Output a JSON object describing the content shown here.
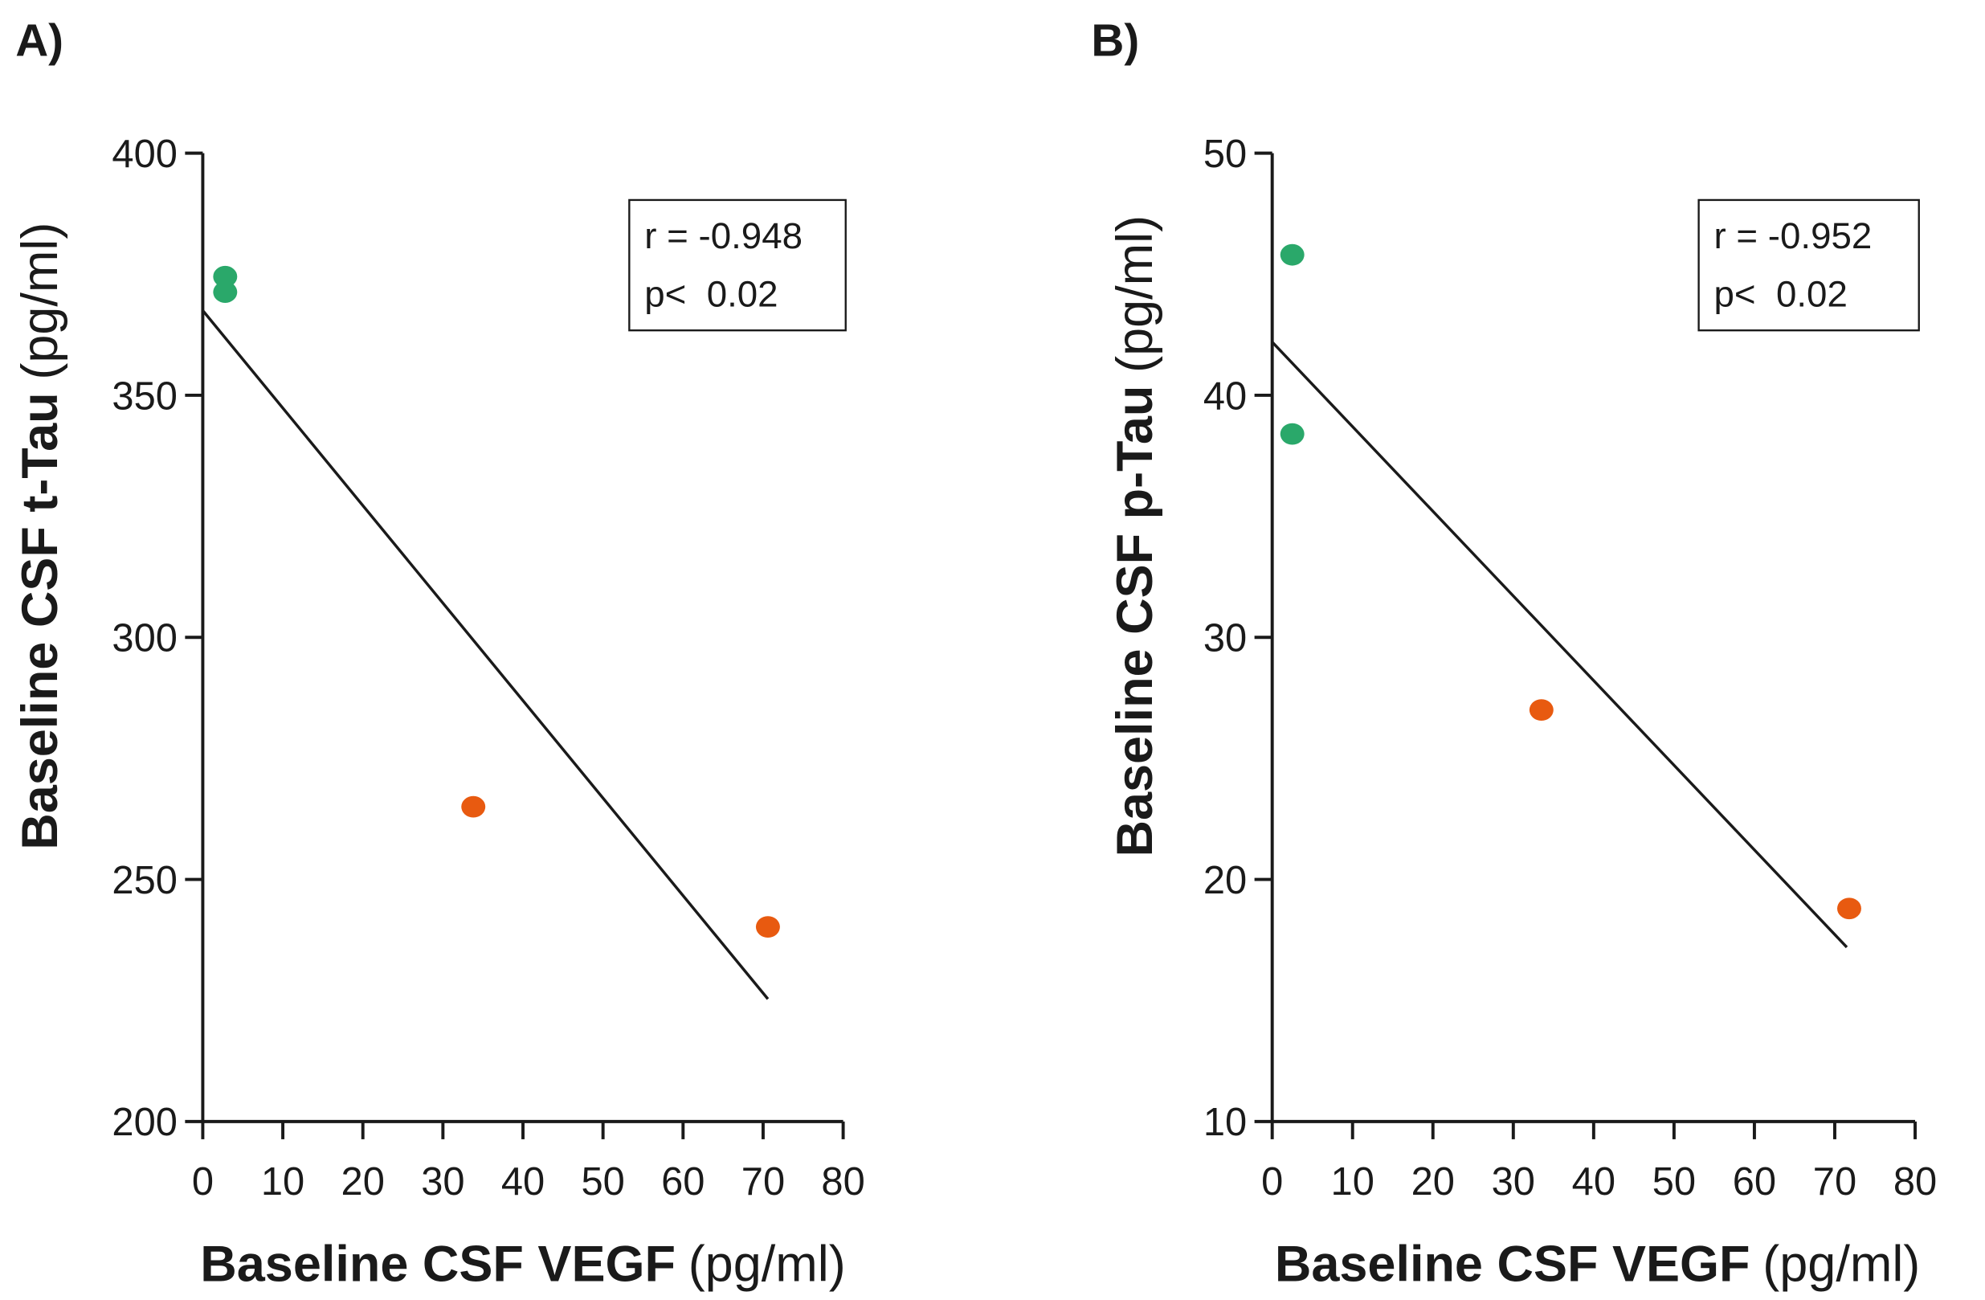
{
  "chart_data": [
    {
      "type": "scatter",
      "panel_label": "A)",
      "xlabel": "Baseline CSF VEGF",
      "xlabel_unit": "(pg/ml)",
      "ylabel": "Baseline CSF t-Tau",
      "ylabel_unit": "(pg/ml)",
      "xlim": [
        0,
        80
      ],
      "ylim": [
        200,
        400
      ],
      "xticks": [
        0,
        10,
        20,
        30,
        40,
        50,
        60,
        70,
        80
      ],
      "yticks": [
        200,
        250,
        300,
        350,
        400
      ],
      "grid": false,
      "points": [
        {
          "x": 2.8,
          "y": 374.5,
          "group": "green"
        },
        {
          "x": 2.8,
          "y": 371.3,
          "group": "green"
        },
        {
          "x": 33.8,
          "y": 265.0,
          "group": "orange"
        },
        {
          "x": 70.6,
          "y": 240.2,
          "group": "orange"
        }
      ],
      "fit_line": {
        "x": [
          0,
          70.6
        ],
        "y": [
          367.5,
          225.3
        ]
      },
      "stats": [
        "r = -0.948",
        "p<  0.02"
      ]
    },
    {
      "type": "scatter",
      "panel_label": "B)",
      "xlabel": "Baseline CSF VEGF",
      "xlabel_unit": "(pg/ml)",
      "ylabel": "Baseline CSF p-Tau",
      "ylabel_unit": "(pg/ml)",
      "xlim": [
        0,
        80
      ],
      "ylim": [
        10,
        50
      ],
      "xticks": [
        0,
        10,
        20,
        30,
        40,
        50,
        60,
        70,
        80
      ],
      "yticks": [
        10,
        20,
        30,
        40,
        50
      ],
      "grid": false,
      "points": [
        {
          "x": 2.5,
          "y": 45.8,
          "group": "green"
        },
        {
          "x": 2.5,
          "y": 38.4,
          "group": "green"
        },
        {
          "x": 33.5,
          "y": 27.0,
          "group": "orange"
        },
        {
          "x": 71.8,
          "y": 18.8,
          "group": "orange"
        }
      ],
      "fit_line": {
        "x": [
          0,
          71.5
        ],
        "y": [
          42.2,
          17.2
        ]
      },
      "stats": [
        "r = -0.952",
        "p<  0.02"
      ]
    }
  ],
  "colors": {
    "green": "#2aa86a",
    "orange": "#e85a10"
  }
}
